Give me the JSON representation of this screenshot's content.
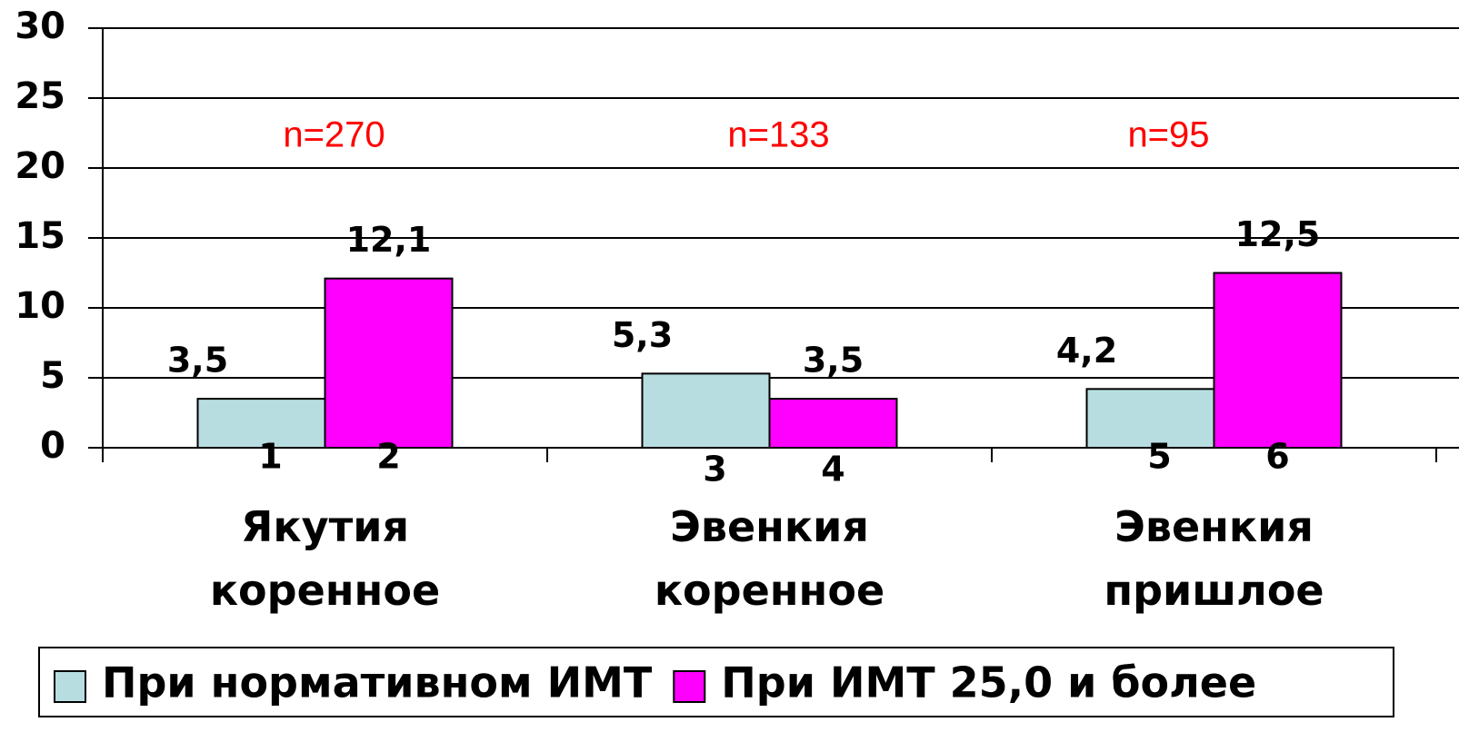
{
  "chart_data": {
    "type": "bar",
    "categories": [
      "Якутия\nкоренное",
      "Эвенкия\nкоренное",
      "Эвенкия\nпришлое"
    ],
    "annotations": [
      "n=270",
      "n=133",
      "n=95"
    ],
    "annotation_color": "#ff0000",
    "series": [
      {
        "name": "При нормативном ИМТ",
        "color": "#b8dde1",
        "values": [
          3.5,
          5.3,
          4.2
        ],
        "value_labels": [
          "3,5",
          "5,3",
          "4,2"
        ],
        "bar_labels": [
          "1",
          "3",
          "5"
        ]
      },
      {
        "name": "При ИМТ 25,0 и более",
        "color": "#ff00ff",
        "values": [
          12.1,
          3.5,
          12.5
        ],
        "value_labels": [
          "12,1",
          "3,5",
          "12,5"
        ],
        "bar_labels": [
          "2",
          "4",
          "6"
        ]
      }
    ],
    "ylim": [
      0,
      30
    ],
    "yticks": [
      0,
      5,
      10,
      15,
      20,
      25,
      30
    ],
    "grid": true,
    "legend": "bottom"
  }
}
